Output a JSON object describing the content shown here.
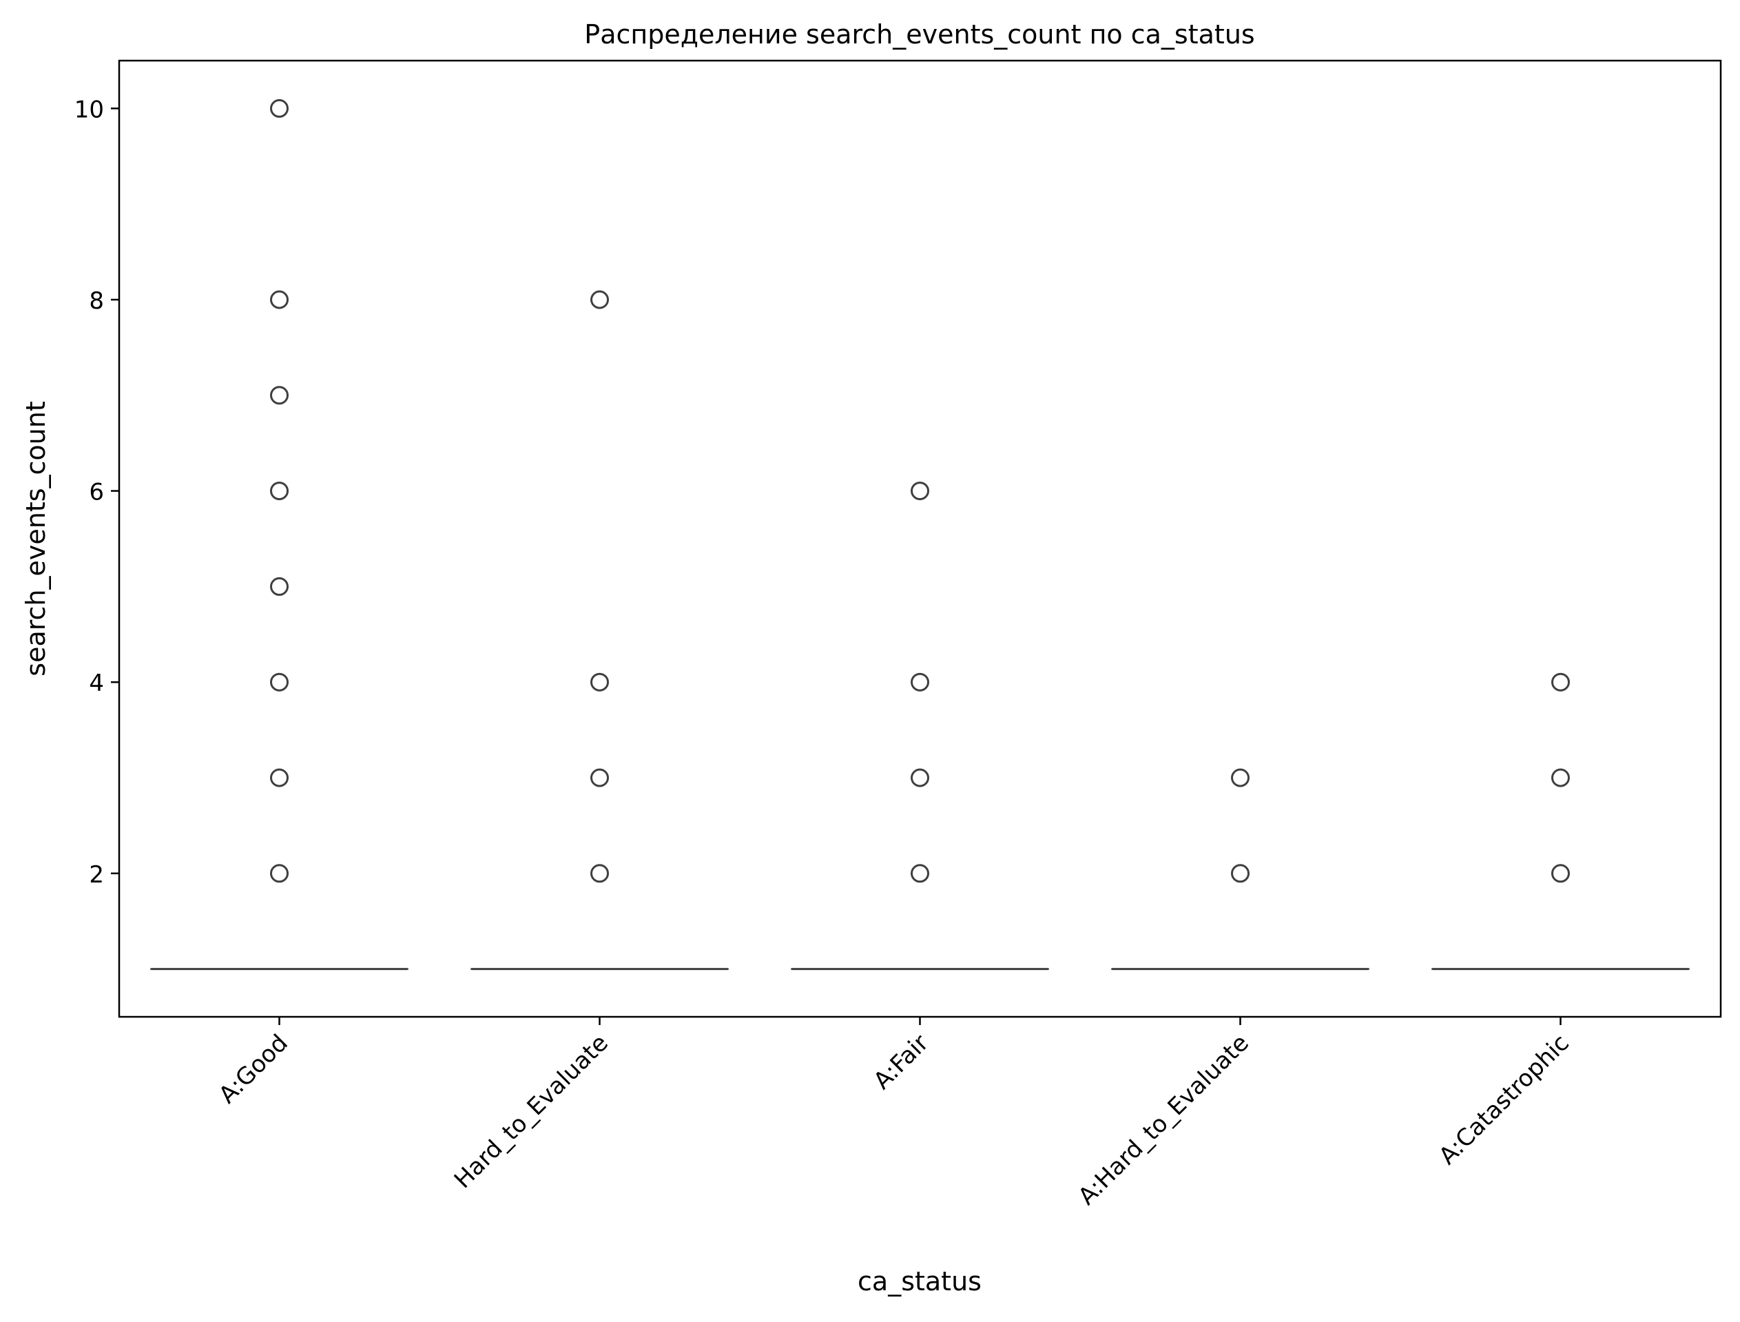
{
  "chart_data": {
    "type": "box",
    "title": "Распределение search_events_count по ca_status",
    "xlabel": "ca_status",
    "ylabel": "search_events_count",
    "ylim": [
      0.5,
      10.5
    ],
    "yticks": [
      2,
      4,
      6,
      8,
      10
    ],
    "categories": [
      "A:Good",
      "Hard_to_Evaluate",
      "A:Fair",
      "A:Hard_to_Evaluate",
      "A:Catastrophic"
    ],
    "series": [
      {
        "category": "A:Good",
        "median": 1,
        "q1": 1,
        "q3": 1,
        "whisker_low": 1,
        "whisker_high": 1,
        "outliers": [
          2,
          3,
          4,
          5,
          6,
          7,
          8,
          10
        ]
      },
      {
        "category": "Hard_to_Evaluate",
        "median": 1,
        "q1": 1,
        "q3": 1,
        "whisker_low": 1,
        "whisker_high": 1,
        "outliers": [
          2,
          3,
          4,
          8
        ]
      },
      {
        "category": "A:Fair",
        "median": 1,
        "q1": 1,
        "q3": 1,
        "whisker_low": 1,
        "whisker_high": 1,
        "outliers": [
          2,
          3,
          4,
          6
        ]
      },
      {
        "category": "A:Hard_to_Evaluate",
        "median": 1,
        "q1": 1,
        "q3": 1,
        "whisker_low": 1,
        "whisker_high": 1,
        "outliers": [
          2,
          3
        ]
      },
      {
        "category": "A:Catastrophic",
        "median": 1,
        "q1": 1,
        "q3": 1,
        "whisker_low": 1,
        "whisker_high": 1,
        "outliers": [
          2,
          3,
          4
        ]
      }
    ],
    "grid": false,
    "legend": "none",
    "colors": {
      "box": "#3f3f3f",
      "axis": "#000000",
      "background": "#ffffff"
    }
  }
}
